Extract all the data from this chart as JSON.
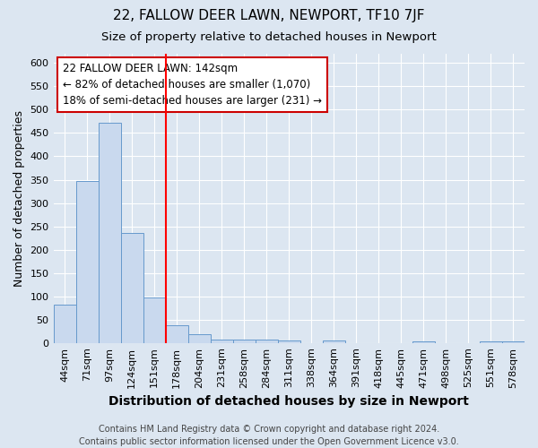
{
  "title": "22, FALLOW DEER LAWN, NEWPORT, TF10 7JF",
  "subtitle": "Size of property relative to detached houses in Newport",
  "xlabel": "Distribution of detached houses by size in Newport",
  "ylabel": "Number of detached properties",
  "bar_labels": [
    "44sqm",
    "71sqm",
    "97sqm",
    "124sqm",
    "151sqm",
    "178sqm",
    "204sqm",
    "231sqm",
    "258sqm",
    "284sqm",
    "311sqm",
    "338sqm",
    "364sqm",
    "391sqm",
    "418sqm",
    "445sqm",
    "471sqm",
    "498sqm",
    "525sqm",
    "551sqm",
    "578sqm"
  ],
  "bar_values": [
    82,
    348,
    473,
    236,
    97,
    37,
    18,
    8,
    8,
    8,
    5,
    0,
    5,
    0,
    0,
    0,
    4,
    0,
    0,
    4,
    4
  ],
  "bar_color": "#c9d9ee",
  "bar_edge_color": "#6699cc",
  "background_color": "#dce6f1",
  "plot_background": "#dce6f1",
  "grid_color": "#ffffff",
  "red_line_x": 4.5,
  "annotation_line1": "22 FALLOW DEER LAWN: 142sqm",
  "annotation_line2": "← 82% of detached houses are smaller (1,070)",
  "annotation_line3": "18% of semi-detached houses are larger (231) →",
  "annotation_box_color": "#ffffff",
  "annotation_box_edge": "#cc0000",
  "ylim": [
    0,
    620
  ],
  "yticks": [
    0,
    50,
    100,
    150,
    200,
    250,
    300,
    350,
    400,
    450,
    500,
    550,
    600
  ],
  "footer": "Contains HM Land Registry data © Crown copyright and database right 2024.\nContains public sector information licensed under the Open Government Licence v3.0.",
  "title_fontsize": 11,
  "subtitle_fontsize": 9.5,
  "ylabel_fontsize": 9,
  "xlabel_fontsize": 10,
  "tick_fontsize": 8,
  "annotation_fontsize": 8.5,
  "footer_fontsize": 7
}
